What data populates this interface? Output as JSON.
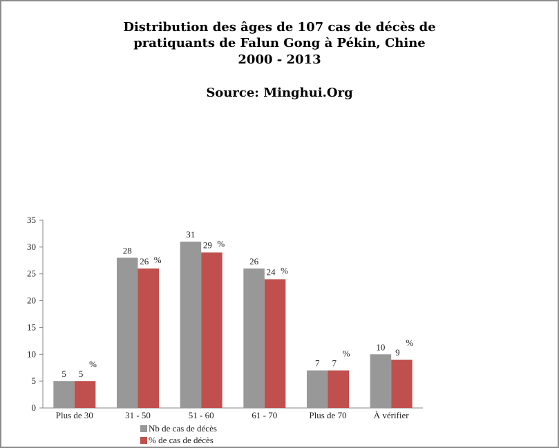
{
  "chart_data": {
    "type": "bar",
    "title_lines": [
      "Distribution des âges de 107 cas de décès de",
      "pratiquants de Falun Gong à Pékin, Chine",
      "2000 - 2013"
    ],
    "subtitle": "Source: Minghui.Org",
    "categories": [
      "Plus de 30",
      "31 - 50",
      "51 - 60",
      "61 - 70",
      "Plus de 70",
      "À vérifier"
    ],
    "series": [
      {
        "name": "Nb de cas de décès",
        "values": [
          5,
          28,
          31,
          26,
          7,
          10
        ],
        "color": "#989898"
      },
      {
        "name": "% de cas de décès",
        "values": [
          5,
          26,
          29,
          24,
          7,
          9
        ],
        "color": "#c0504d",
        "label_suffix": "%"
      }
    ],
    "ylim": [
      0,
      35
    ],
    "yticks": [
      0,
      5,
      10,
      15,
      20,
      25,
      30,
      35
    ],
    "xlabel": "",
    "ylabel": "",
    "grid": false,
    "legend_position": "bottom"
  }
}
